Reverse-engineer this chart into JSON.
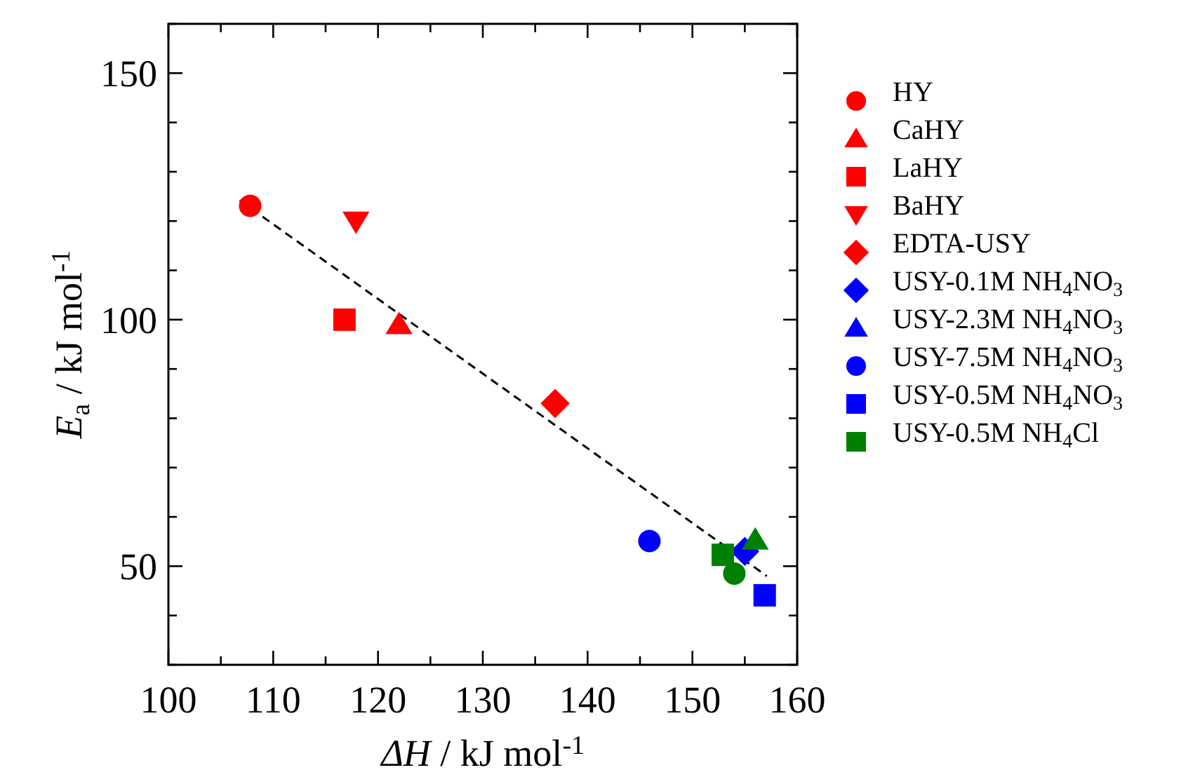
{
  "chart_data": {
    "type": "scatter",
    "xlabel": "ΔH / kJ mol$^{-1}$",
    "ylabel": "E$_{a}$ / kJ mol$^{-1}$",
    "xlim": [
      100,
      160
    ],
    "ylim": [
      30,
      160
    ],
    "xticks": [
      100,
      {
        "value": 105,
        "label": null
      },
      110,
      {
        "value": 115,
        "label": null
      },
      120,
      {
        "value": 125,
        "label": null
      },
      130,
      {
        "value": 135,
        "label": null
      },
      140,
      {
        "value": 145,
        "label": null
      },
      150,
      {
        "value": 155,
        "label": null
      },
      160
    ],
    "yticks": [
      {
        "value": 30,
        "label": null
      },
      {
        "value": 40,
        "label": null
      },
      50,
      {
        "value": 60,
        "label": null
      },
      {
        "value": 70,
        "label": null
      },
      {
        "value": 80,
        "label": null
      },
      {
        "value": 90,
        "label": null
      },
      100,
      {
        "value": 110,
        "label": null
      },
      {
        "value": 120,
        "label": null
      },
      {
        "value": 130,
        "label": null
      },
      {
        "value": 140,
        "label": null
      },
      150,
      {
        "value": 160,
        "label": null
      }
    ],
    "grid": false,
    "legend": "right",
    "series": [
      {
        "type": "line",
        "color": "#000000",
        "line_style": "dashed",
        "x": [
          106.8,
          157.1
        ],
        "values": [
          124.2,
          48
        ]
      },
      {
        "name": "HY",
        "color": "#ff0000",
        "marker": "circle",
        "x": [
          107.8
        ],
        "values": [
          123.1
        ]
      },
      {
        "name": "CaHY",
        "color": "#ff0000",
        "marker": "triangle",
        "x": [
          122
        ],
        "values": [
          99
        ]
      },
      {
        "name": "LaHY",
        "color": "#ff0000",
        "marker": "square",
        "x": [
          116.8
        ],
        "values": [
          100
        ]
      },
      {
        "name": "BaHY",
        "color": "#ff0000",
        "marker": "triangle-down",
        "x": [
          117.9
        ],
        "values": [
          120
        ]
      },
      {
        "name": "EDTA-USY",
        "color": "#ff0000",
        "marker": "diamond",
        "x": [
          136.9
        ],
        "values": [
          83
        ]
      },
      {
        "name": "USY-0.1M NH$_{4}$NO$_{3}$",
        "color": "#0000ff",
        "marker": "diamond",
        "x": [
          155
        ],
        "values": [
          53
        ]
      },
      {
        "name": "USY-2.3M NH$_{4}$NO$_{3}$",
        "color": "#0000ff",
        "marker": "triangle",
        "x": [
          null
        ],
        "values": [
          null
        ]
      },
      {
        "name": "USY-7.5M NH$_{4}$NO$_{3}$",
        "color": "#0000ff",
        "marker": "circle",
        "x": [
          145.9
        ],
        "values": [
          55.1
        ]
      },
      {
        "name": "USY-0.5M NH$_{4}$NO$_{3}$",
        "color": "#0000ff",
        "marker": "square",
        "x": [
          156.9
        ],
        "values": [
          44.1
        ]
      },
      {
        "name": "USY-0.5M NH$_{4}$Cl",
        "color": "#008000",
        "marker": "square",
        "x": [
          152.9
        ],
        "values": [
          52.3
        ]
      },
      {
        "color": "#008000",
        "marker": "circle",
        "x": [
          154
        ],
        "values": [
          48.5
        ]
      },
      {
        "color": "#008000",
        "marker": "triangle",
        "x": [
          156
        ],
        "values": [
          55.3
        ]
      }
    ]
  }
}
